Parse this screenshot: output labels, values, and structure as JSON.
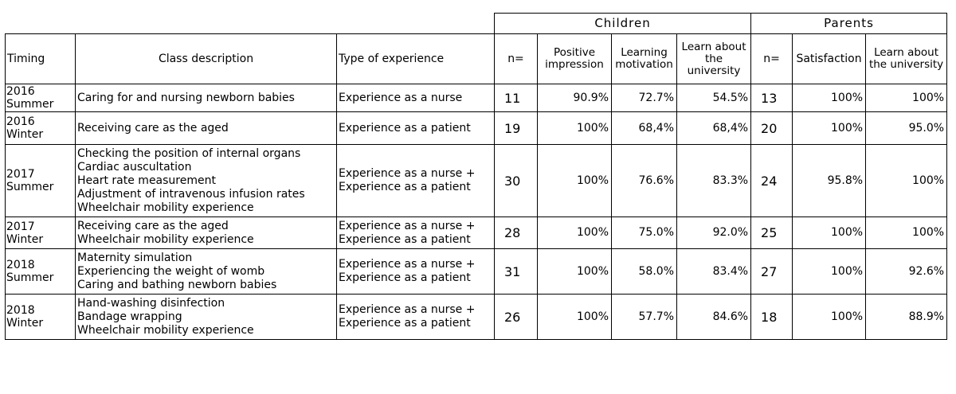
{
  "groups": {
    "children": "Children",
    "parents": "Parents"
  },
  "headers": {
    "timing": "Timing",
    "class_description": "Class description",
    "type_of_experience": "Type of experience",
    "children_n": "n=",
    "positive_impression": "Positive impression",
    "learning_motivation": "Learning motivation",
    "children_learn": "Learn about the university",
    "parents_n": "n=",
    "satisfaction": "Satisfaction",
    "parents_learn": "Learn about the university"
  },
  "rows": [
    {
      "timing": [
        "2016",
        "Summer"
      ],
      "class": [
        "Caring for and nursing newborn babies"
      ],
      "type": [
        "Experience as a nurse"
      ],
      "children_n": "11",
      "positive": "90.9%",
      "motivation": "72.7%",
      "children_learn": "54.5%",
      "parents_n": "13",
      "satisfaction": "100%",
      "parents_learn": "100%"
    },
    {
      "timing": [
        "2016",
        "Winter"
      ],
      "class": [
        "Receiving care as the aged"
      ],
      "type": [
        "Experience as a patient"
      ],
      "children_n": "19",
      "positive": "100%",
      "motivation": "68,4%",
      "children_learn": "68,4%",
      "parents_n": "20",
      "satisfaction": "100%",
      "parents_learn": "95.0%"
    },
    {
      "timing": [
        "2017",
        "Summer"
      ],
      "class": [
        "Checking the position of internal organs",
        "Cardiac auscultation",
        "Heart rate measurement",
        "Adjustment of intravenous infusion rates",
        "Wheelchair mobility experience"
      ],
      "type": [
        "Experience as a nurse +",
        "Experience as a patient"
      ],
      "children_n": "30",
      "positive": "100%",
      "motivation": "76.6%",
      "children_learn": "83.3%",
      "parents_n": "24",
      "satisfaction": "95.8%",
      "parents_learn": "100%"
    },
    {
      "timing": [
        "2017",
        "Winter"
      ],
      "class": [
        "Receiving care as the aged",
        "Wheelchair mobility experience"
      ],
      "type": [
        "Experience as a nurse +",
        "Experience as a patient"
      ],
      "children_n": "28",
      "positive": "100%",
      "motivation": "75.0%",
      "children_learn": "92.0%",
      "parents_n": "25",
      "satisfaction": "100%",
      "parents_learn": "100%"
    },
    {
      "timing": [
        "2018",
        "Summer"
      ],
      "class": [
        "Maternity simulation",
        "Experiencing the weight of womb",
        "Caring and bathing newborn babies"
      ],
      "type": [
        "Experience as a nurse +",
        "Experience as a patient"
      ],
      "children_n": "31",
      "positive": "100%",
      "motivation": "58.0%",
      "children_learn": "83.4%",
      "parents_n": "27",
      "satisfaction": "100%",
      "parents_learn": "92.6%"
    },
    {
      "timing": [
        "2018",
        "Winter"
      ],
      "class": [
        "Hand-washing disinfection",
        "Bandage wrapping",
        "Wheelchair mobility experience"
      ],
      "type": [
        "Experience as a nurse +",
        "Experience as a patient"
      ],
      "children_n": "26",
      "positive": "100%",
      "motivation": "57.7%",
      "children_learn": "84.6%",
      "parents_n": "18",
      "satisfaction": "100%",
      "parents_learn": "88.9%"
    }
  ]
}
